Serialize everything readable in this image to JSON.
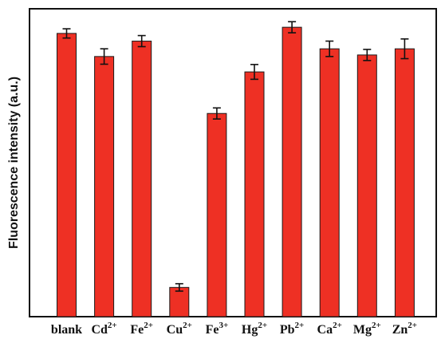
{
  "chart_data": {
    "type": "bar",
    "title": "",
    "xlabel": "",
    "ylabel": "Fluorescence intensity (a.u.)",
    "ylim": [
      0,
      100
    ],
    "grid": false,
    "categories": [
      {
        "base": "blank",
        "sup": ""
      },
      {
        "base": "Cd",
        "sup": "2+"
      },
      {
        "base": "Fe",
        "sup": "2+"
      },
      {
        "base": "Cu",
        "sup": "2+"
      },
      {
        "base": "Fe",
        "sup": "3+"
      },
      {
        "base": "Hg",
        "sup": "2+"
      },
      {
        "base": "Pb",
        "sup": "2+"
      },
      {
        "base": "Ca",
        "sup": "2+"
      },
      {
        "base": "Mg",
        "sup": "2+"
      },
      {
        "base": "Zn",
        "sup": "2+"
      }
    ],
    "values": [
      92.0,
      84.5,
      89.5,
      9.5,
      66.0,
      79.5,
      94.0,
      87.0,
      85.0,
      87.0
    ],
    "errors": [
      1.5,
      2.5,
      1.8,
      1.2,
      1.8,
      2.4,
      1.8,
      2.5,
      1.8,
      3.2
    ],
    "colors": {
      "bar": "#ee3024",
      "bar_stroke": "#1a1a1a",
      "axis": "#111111"
    }
  }
}
